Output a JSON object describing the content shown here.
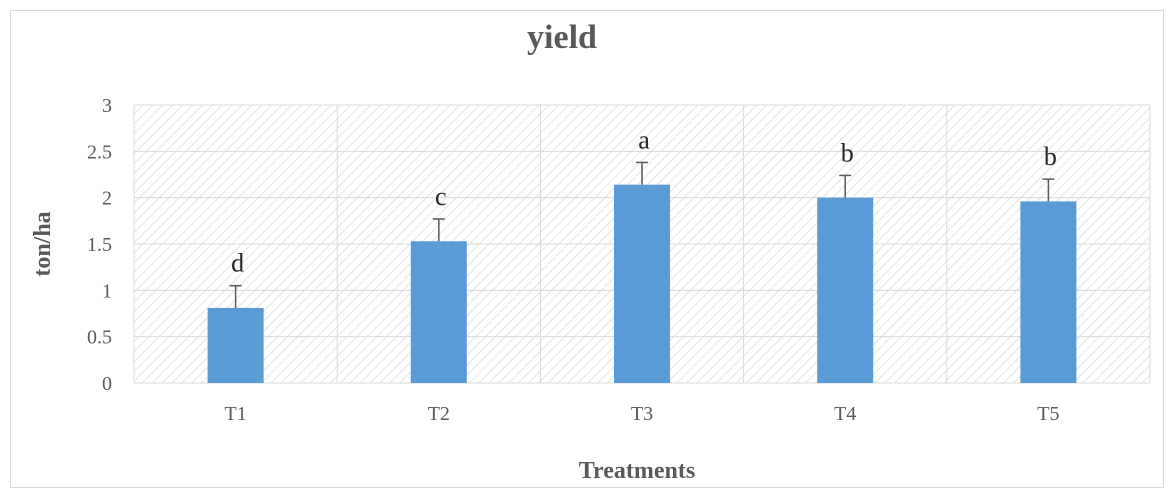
{
  "chart_data": {
    "type": "bar",
    "title": "yield",
    "xlabel": "Treatments",
    "ylabel": "ton/ha",
    "categories": [
      "T1",
      "T2",
      "T3",
      "T4",
      "T5"
    ],
    "values": [
      0.81,
      1.53,
      2.14,
      2.0,
      1.96
    ],
    "error_plus": [
      0.24,
      0.24,
      0.24,
      0.24,
      0.24
    ],
    "significance_labels": [
      "d",
      "c",
      "a",
      "b",
      "b"
    ],
    "ylim": [
      0,
      3
    ],
    "yticks": [
      "0",
      "0.5",
      "1",
      "1.5",
      "2",
      "2.5",
      "3"
    ],
    "grid": true,
    "colors": {
      "bar": "#5b9bd5",
      "grid": "#d9d9d9",
      "hatch": "#d9d9d9",
      "text": "#595959",
      "axis_title": "#595959"
    }
  }
}
